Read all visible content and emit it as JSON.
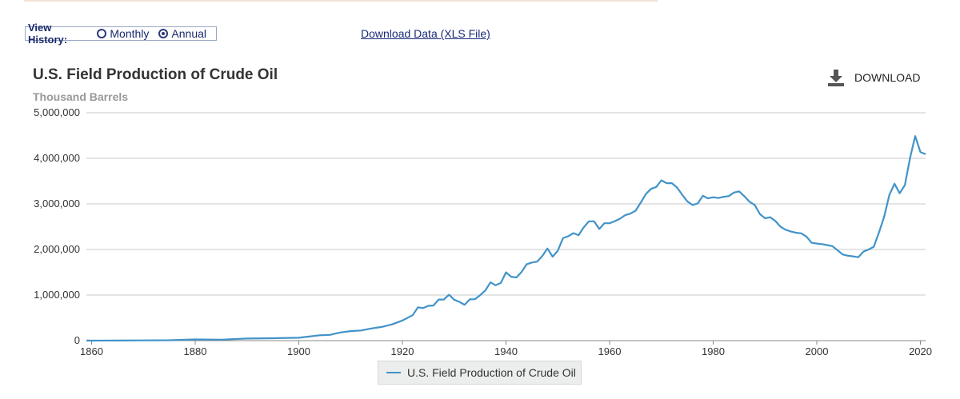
{
  "header": {
    "view_history_label": "View History:",
    "monthly_label": "Monthly",
    "annual_label": "Annual",
    "selected": "Annual",
    "download_xls_label": "Download Data (XLS File)"
  },
  "download_label": "DOWNLOAD",
  "colors": {
    "line": "#4193c9",
    "grid": "#c8c8c8"
  },
  "chart_data": {
    "type": "line",
    "title": "U.S. Field Production of Crude Oil",
    "ylabel": "Thousand Barrels",
    "xlabel": "",
    "ylim": [
      0,
      5000000
    ],
    "xlim": [
      1859,
      2021
    ],
    "yticks": [
      0,
      1000000,
      2000000,
      3000000,
      4000000,
      5000000
    ],
    "yticklabels": [
      "0",
      "1,000,000",
      "2,000,000",
      "3,000,000",
      "4,000,000",
      "5,000,000"
    ],
    "xticks": [
      1860,
      1880,
      1900,
      1920,
      1940,
      1960,
      1980,
      2000,
      2020
    ],
    "xticklabels": [
      "1860",
      "1880",
      "1900",
      "1920",
      "1940",
      "1960",
      "1980",
      "2000",
      "2020"
    ],
    "legend": "U.S. Field Production of Crude Oil",
    "series": [
      {
        "name": "U.S. Field Production of Crude Oil",
        "x": [
          1859,
          1860,
          1865,
          1870,
          1875,
          1880,
          1885,
          1890,
          1895,
          1900,
          1902,
          1904,
          1906,
          1908,
          1910,
          1912,
          1914,
          1916,
          1918,
          1920,
          1922,
          1923,
          1924,
          1925,
          1926,
          1927,
          1928,
          1929,
          1930,
          1931,
          1932,
          1933,
          1934,
          1935,
          1936,
          1937,
          1938,
          1939,
          1940,
          1941,
          1942,
          1943,
          1944,
          1945,
          1946,
          1947,
          1948,
          1949,
          1950,
          1951,
          1952,
          1953,
          1954,
          1955,
          1956,
          1957,
          1958,
          1959,
          1960,
          1961,
          1962,
          1963,
          1964,
          1965,
          1966,
          1967,
          1968,
          1969,
          1970,
          1971,
          1972,
          1973,
          1974,
          1975,
          1976,
          1977,
          1978,
          1979,
          1980,
          1981,
          1982,
          1983,
          1984,
          1985,
          1986,
          1987,
          1988,
          1989,
          1990,
          1991,
          1992,
          1993,
          1994,
          1995,
          1996,
          1997,
          1998,
          1999,
          2000,
          2001,
          2002,
          2003,
          2004,
          2005,
          2006,
          2007,
          2008,
          2009,
          2010,
          2011,
          2012,
          2013,
          2014,
          2015,
          2016,
          2017,
          2018,
          2019,
          2020,
          2021
        ],
        "values": [
          2000,
          500,
          2500,
          5300,
          8800,
          26300,
          21900,
          45800,
          52900,
          63600,
          88800,
          117100,
          126500,
          178500,
          209600,
          222900,
          265800,
          300800,
          356000,
          442900,
          557500,
          732400,
          714000,
          763700,
          770900,
          901100,
          901500,
          1007300,
          898000,
          851100,
          785200,
          905700,
          908100,
          996600,
          1099700,
          1279200,
          1214400,
          1264900,
          1498000,
          1402200,
          1386600,
          1505600,
          1677900,
          1713700,
          1733900,
          1856900,
          2020200,
          1841900,
          1973600,
          2247700,
          2289800,
          2357100,
          2314900,
          2484400,
          2617200,
          2616900,
          2448900,
          2574600,
          2574900,
          2621800,
          2676200,
          2752700,
          2786800,
          2848500,
          3027800,
          3215700,
          3329000,
          3371800,
          3517500,
          3453900,
          3455400,
          3360900,
          3202600,
          3056800,
          2976200,
          3009300,
          3178200,
          3121300,
          3146400,
          3128600,
          3156700,
          3170900,
          3249700,
          3274600,
          3168300,
          3047400,
          2979100,
          2778800,
          2684700,
          2707000,
          2624600,
          2499000,
          2431500,
          2394300,
          2366000,
          2354800,
          2281900,
          2146700,
          2130700,
          2117500,
          2097100,
          2073500,
          1983300,
          1890100,
          1862300,
          1848500,
          1830100,
          1953400,
          1999400,
          2059300,
          2371200,
          2720100,
          3196100,
          3442200,
          3233600,
          3414600,
          4010800,
          4488200,
          4139300,
          4088600
        ]
      }
    ]
  }
}
